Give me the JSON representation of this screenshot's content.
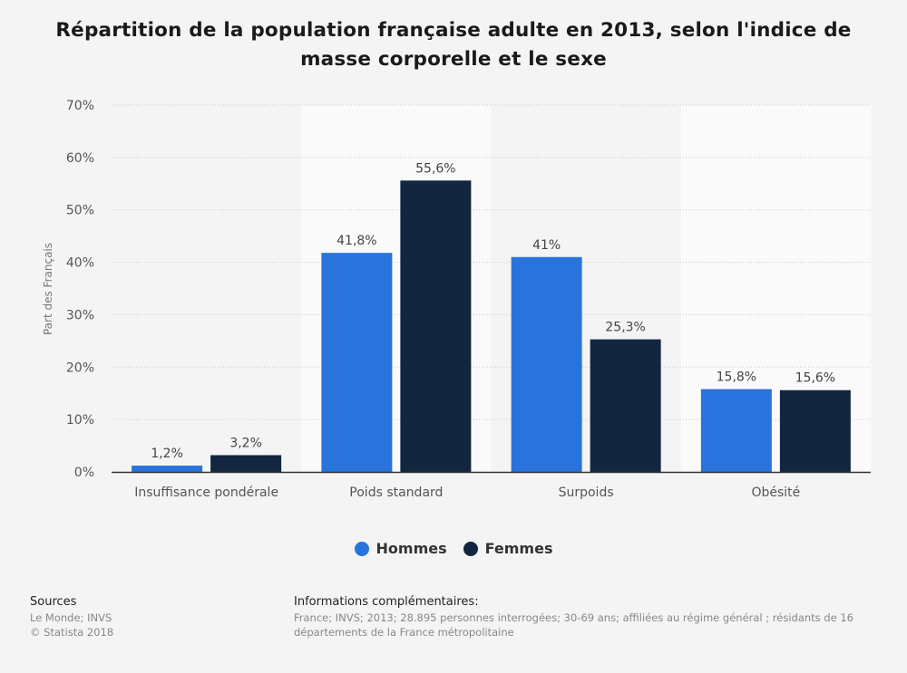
{
  "title": "Répartition de la population française adulte en 2013, selon l'indice de masse corporelle et le sexe",
  "chart_data": {
    "type": "bar",
    "title": "Répartition de la population française adulte en 2013, selon l'indice de masse corporelle et le sexe",
    "xlabel": "",
    "ylabel": "Part des Français",
    "ylim": [
      0,
      70
    ],
    "yticks": [
      0,
      10,
      20,
      30,
      40,
      50,
      60,
      70
    ],
    "ytick_labels": [
      "0%",
      "10%",
      "20%",
      "30%",
      "40%",
      "50%",
      "60%",
      "70%"
    ],
    "categories": [
      "Insuffisance pondérale",
      "Poids standard",
      "Surpoids",
      "Obésité"
    ],
    "series": [
      {
        "name": "Hommes",
        "color": "#2874dc",
        "values": [
          1.2,
          41.8,
          41,
          15.8
        ],
        "labels": [
          "1,2%",
          "41,8%",
          "41%",
          "15,8%"
        ]
      },
      {
        "name": "Femmes",
        "color": "#12263f",
        "values": [
          3.2,
          55.6,
          25.3,
          15.6
        ],
        "labels": [
          "3,2%",
          "55,6%",
          "25,3%",
          "15,6%"
        ]
      }
    ],
    "grid": true,
    "legend": "bottom-center"
  },
  "legend": {
    "items": [
      {
        "label": "Hommes",
        "color": "#2874dc"
      },
      {
        "label": "Femmes",
        "color": "#12263f"
      }
    ]
  },
  "footer": {
    "sources_heading": "Sources",
    "sources_line1": "Le Monde; INVS",
    "sources_line2": "© Statista 2018",
    "info_heading": "Informations complémentaires:",
    "info_text": "France; INVS; 2013; 28.895 personnes interrogées; 30-69 ans; affiliées au régime général ; résidants de 16 départements de la France métropolitaine"
  }
}
